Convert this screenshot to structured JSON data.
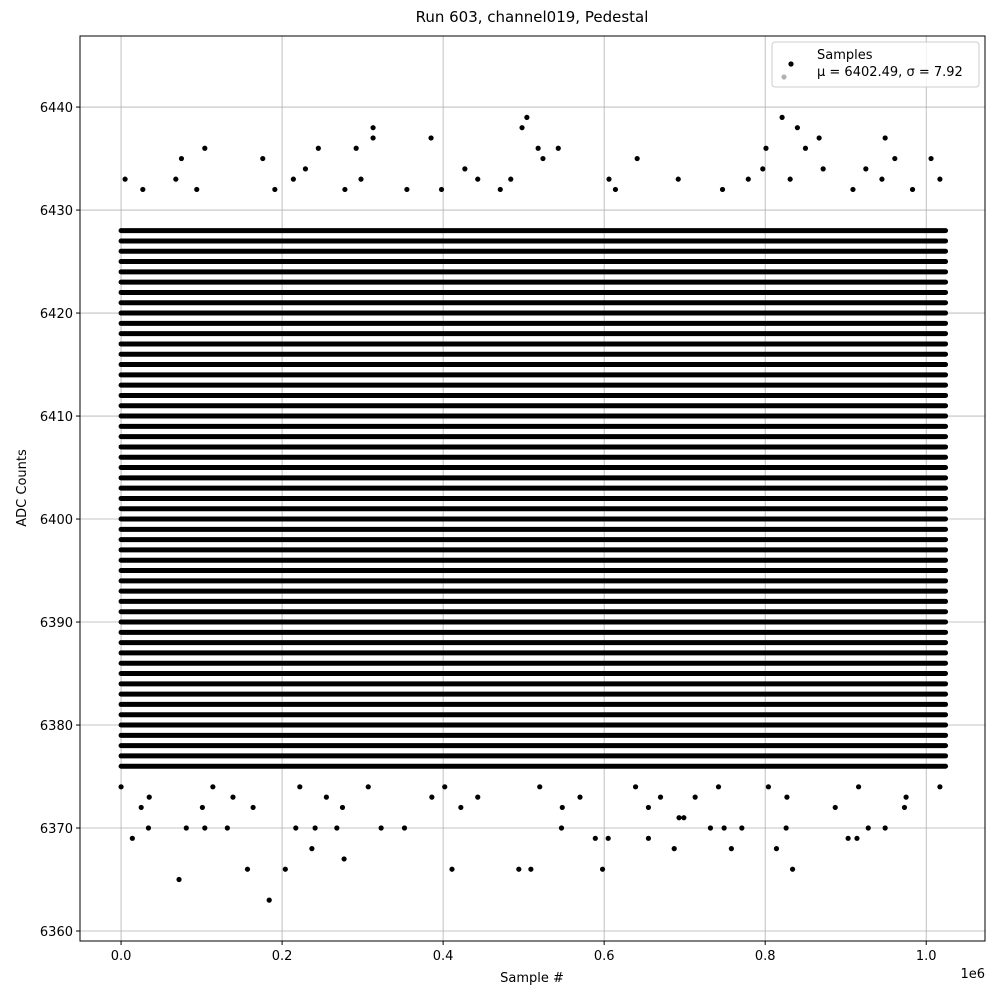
{
  "chart_data": {
    "type": "scatter",
    "title": "Run 603, channel019, Pedestal",
    "x_label": "Sample #",
    "y_label": "ADC Counts",
    "x_offset_label": "1e6",
    "xlim": [
      -51000,
      1073000
    ],
    "ylim": [
      6359.03,
      6446.9
    ],
    "xticks": [
      {
        "value": 0,
        "label": "0.0"
      },
      {
        "value": 200000,
        "label": "0.2"
      },
      {
        "value": 400000,
        "label": "0.4"
      },
      {
        "value": 600000,
        "label": "0.6"
      },
      {
        "value": 800000,
        "label": "0.8"
      },
      {
        "value": 1000000,
        "label": "1.0"
      }
    ],
    "yticks": [
      6360,
      6370,
      6380,
      6390,
      6400,
      6410,
      6420,
      6430,
      6440
    ],
    "grid": true,
    "legend_position": "upper right",
    "series": [
      {
        "name": "Samples",
        "legend_note": "μ = 6402.49, σ = 7.92",
        "color": "#000000",
        "x_range": [
          0,
          1024000
        ],
        "dense_levels": [
          6376,
          6377,
          6378,
          6379,
          6380,
          6381,
          6382,
          6383,
          6384,
          6385,
          6386,
          6387,
          6388,
          6389,
          6390,
          6391,
          6392,
          6393,
          6394,
          6395,
          6396,
          6397,
          6398,
          6399,
          6400,
          6401,
          6402,
          6403,
          6404,
          6405,
          6406,
          6407,
          6408,
          6409,
          6410,
          6411,
          6412,
          6413,
          6414,
          6415,
          6416,
          6417,
          6418,
          6419,
          6420,
          6421,
          6422,
          6423,
          6424,
          6425,
          6426,
          6427,
          6428
        ],
        "x": [
          821000,
          504000,
          498000,
          313000,
          313000,
          385000,
          949000,
          867000,
          840000,
          104000,
          245000,
          292000,
          543000,
          518000,
          801000,
          850000,
          75000,
          176000,
          641000,
          1006000,
          961000,
          524000,
          427000,
          229000,
          872000,
          925000,
          797000,
          5000,
          68000,
          214000,
          298000,
          443000,
          484000,
          606000,
          692000,
          779000,
          831000,
          945000,
          1017000,
          27000,
          94000,
          191000,
          278000,
          355000,
          398000,
          471000,
          614000,
          747000,
          909000,
          983000,
          0,
          114000,
          222000,
          307000,
          402000,
          520000,
          639000,
          742000,
          804000,
          916000,
          1017000,
          35000,
          139000,
          255000,
          386000,
          443000,
          570000,
          670000,
          713000,
          827000,
          975000,
          25000,
          101000,
          164000,
          275000,
          422000,
          548000,
          655000,
          887000,
          973000,
          699000,
          693000,
          34000,
          81000,
          104000,
          132000,
          217000,
          241000,
          268000,
          323000,
          352000,
          547000,
          732000,
          749000,
          771000,
          826000,
          928000,
          949000,
          14000,
          589000,
          605000,
          655000,
          903000,
          914000,
          237000,
          687000,
          758000,
          814000,
          277000,
          157000,
          204000,
          411000,
          494000,
          509000,
          598000,
          834000,
          72000,
          184000
        ],
        "y": [
          6439,
          6439,
          6438,
          6438,
          6437,
          6437,
          6437,
          6437,
          6438,
          6436,
          6436,
          6436,
          6436,
          6436,
          6436,
          6436,
          6435,
          6435,
          6435,
          6435,
          6435,
          6435,
          6434,
          6434,
          6434,
          6434,
          6434,
          6433,
          6433,
          6433,
          6433,
          6433,
          6433,
          6433,
          6433,
          6433,
          6433,
          6433,
          6433,
          6432,
          6432,
          6432,
          6432,
          6432,
          6432,
          6432,
          6432,
          6432,
          6432,
          6432,
          6374,
          6374,
          6374,
          6374,
          6374,
          6374,
          6374,
          6374,
          6374,
          6374,
          6374,
          6373,
          6373,
          6373,
          6373,
          6373,
          6373,
          6373,
          6373,
          6373,
          6373,
          6372,
          6372,
          6372,
          6372,
          6372,
          6372,
          6372,
          6372,
          6372,
          6371,
          6371,
          6370,
          6370,
          6370,
          6370,
          6370,
          6370,
          6370,
          6370,
          6370,
          6370,
          6370,
          6370,
          6370,
          6370,
          6370,
          6370,
          6369,
          6369,
          6369,
          6369,
          6369,
          6369,
          6368,
          6368,
          6368,
          6368,
          6367,
          6366,
          6366,
          6366,
          6366,
          6366,
          6366,
          6366,
          6365,
          6363
        ]
      }
    ]
  }
}
